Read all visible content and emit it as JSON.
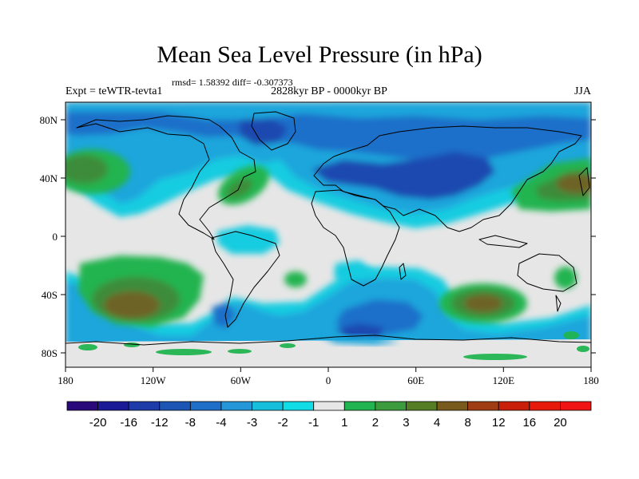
{
  "title": "Mean Sea Level Pressure (in hPa)",
  "stats": "rmsd= 1.58392 diff= -0.307373",
  "experiment": "Expt = teWTR-tevta1",
  "period": "2828kyr BP - 0000kyr BP",
  "season": "JJA",
  "lat_ticks": [
    "80N",
    "40N",
    "0",
    "40S",
    "80S"
  ],
  "lon_ticks": [
    "180",
    "120W",
    "60W",
    "0",
    "60E",
    "120E",
    "180"
  ],
  "colorbar": {
    "labels": [
      "-20",
      "-16",
      "-12",
      "-8",
      "-4",
      "-3",
      "-2",
      "-1",
      "1",
      "2",
      "3",
      "4",
      "8",
      "12",
      "16",
      "20"
    ],
    "colors": [
      "#2a0a7a",
      "#1a1a96",
      "#1e3ca8",
      "#1c55b4",
      "#1f6ec8",
      "#2596d8",
      "#17bedc",
      "#12dce6",
      "#e6e6e6",
      "#22b450",
      "#3c9b3c",
      "#557d23",
      "#785a1c",
      "#a03c14",
      "#c81e0a",
      "#e6190a",
      "#f01414"
    ]
  },
  "colors": {
    "neutral": "#e6e6e6",
    "cyan": "#14cce0",
    "lightblue": "#1fa6dc",
    "blue": "#1c6fc9",
    "darkblue": "#1c4ab0",
    "green": "#22b450",
    "olive": "#3c8c3a",
    "brown": "#6e6428"
  }
}
